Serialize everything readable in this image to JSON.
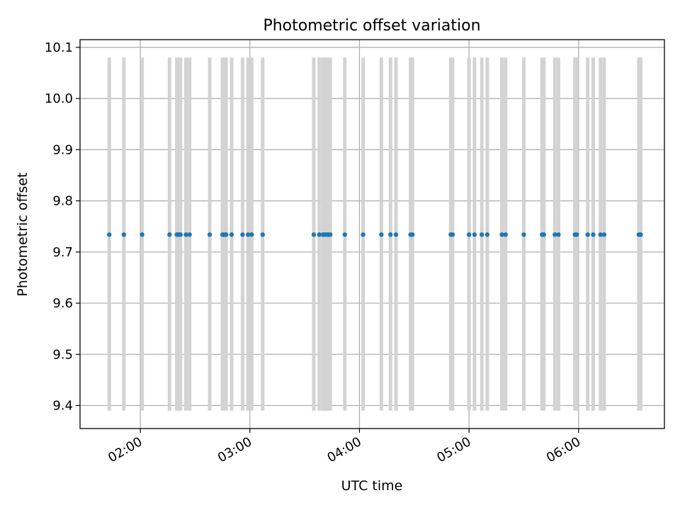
{
  "chart_data": {
    "type": "scatter",
    "title": "Photometric offset variation",
    "xlabel": "UTC time",
    "ylabel": "Photometric offset",
    "x_range": [
      "01:27",
      "06:47"
    ],
    "ylim": [
      9.355,
      10.115
    ],
    "yticks": [
      9.4,
      9.5,
      9.6,
      9.7,
      9.8,
      9.9,
      10.0,
      10.1
    ],
    "xticks": [
      "02:00",
      "03:00",
      "04:00",
      "05:00",
      "06:00"
    ],
    "grid": true,
    "error_bar_range": [
      9.39,
      10.08
    ],
    "series": [
      {
        "x": [
          "01:43",
          "01:51",
          "02:01",
          "02:16",
          "02:20",
          "02:21",
          "02:22",
          "02:25",
          "02:27",
          "02:38",
          "02:45",
          "02:46",
          "02:47",
          "02:50",
          "02:56",
          "02:59",
          "03:01",
          "03:07",
          "03:35",
          "03:38",
          "03:40",
          "03:41",
          "03:42",
          "03:43",
          "03:44",
          "03:52",
          "04:02",
          "04:12",
          "04:17",
          "04:20",
          "04:28",
          "04:29",
          "04:50",
          "04:51",
          "05:00",
          "05:03",
          "05:07",
          "05:10",
          "05:18",
          "05:20",
          "05:30",
          "05:40",
          "05:41",
          "05:47",
          "05:49",
          "05:58",
          "05:59",
          "06:05",
          "06:08",
          "06:12",
          "06:14",
          "06:33",
          "06:34"
        ],
        "y": [
          9.734,
          9.734,
          9.734,
          9.734,
          9.734,
          9.734,
          9.734,
          9.734,
          9.734,
          9.734,
          9.734,
          9.734,
          9.734,
          9.734,
          9.734,
          9.734,
          9.734,
          9.734,
          9.734,
          9.734,
          9.734,
          9.734,
          9.734,
          9.734,
          9.734,
          9.734,
          9.734,
          9.734,
          9.734,
          9.734,
          9.734,
          9.734,
          9.734,
          9.734,
          9.734,
          9.734,
          9.734,
          9.734,
          9.734,
          9.734,
          9.734,
          9.734,
          9.734,
          9.734,
          9.734,
          9.734,
          9.734,
          9.734,
          9.734,
          9.734,
          9.734,
          9.734,
          9.734
        ]
      }
    ]
  },
  "colors": {
    "points": "#1f77b4",
    "error_bars": "#d3d3d3",
    "grid": "#b0b0b0",
    "axes": "#000000"
  }
}
